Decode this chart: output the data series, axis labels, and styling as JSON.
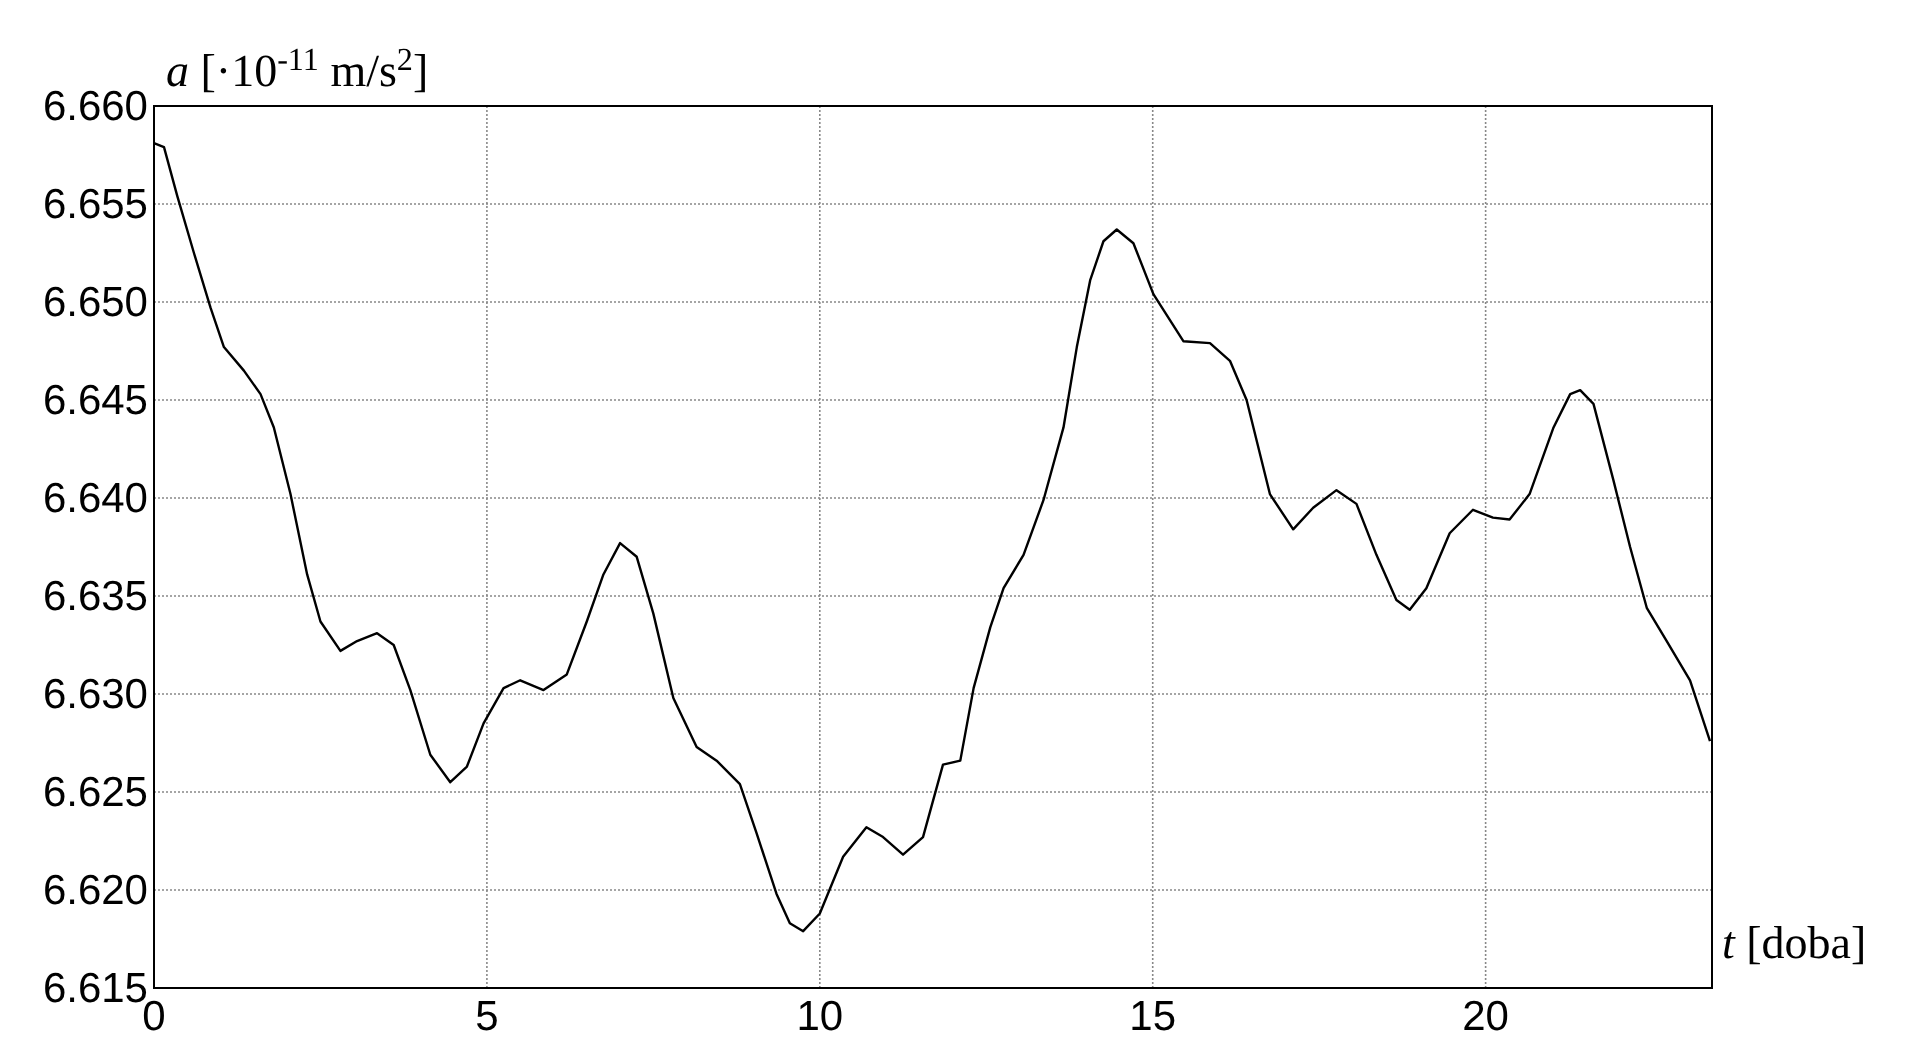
{
  "chart_data": {
    "type": "line",
    "ylabel": "a [·10$^{-11}$ m/s$^{2}$]",
    "xlabel": "t [doba]",
    "xlim": [
      0,
      23.4
    ],
    "ylim": [
      6.615,
      6.66
    ],
    "xticks": [
      0,
      5,
      10,
      15,
      20
    ],
    "yticks": [
      {
        "value": 6.615,
        "label": "6.615"
      },
      {
        "value": 6.62,
        "label": "6.620"
      },
      {
        "value": 6.625,
        "label": "6.625"
      },
      {
        "value": 6.63,
        "label": "6.630"
      },
      {
        "value": 6.635,
        "label": "6.635"
      },
      {
        "value": 6.64,
        "label": "6.640"
      },
      {
        "value": 6.645,
        "label": "6.645"
      },
      {
        "value": 6.65,
        "label": "6.650"
      },
      {
        "value": 6.655,
        "label": "6.655"
      },
      {
        "value": 6.66,
        "label": "6.660"
      }
    ],
    "grid": true,
    "line_style": "solid",
    "series": [
      {
        "color": "#000000",
        "x": [
          0,
          0.15,
          0.35,
          0.6,
          0.85,
          1.05,
          1.35,
          1.6,
          1.8,
          2.05,
          2.3,
          2.5,
          2.8,
          3.05,
          3.35,
          3.6,
          3.85,
          4.15,
          4.45,
          4.7,
          4.95,
          5.25,
          5.5,
          5.85,
          6.2,
          6.5,
          6.75,
          7.0,
          7.25,
          7.5,
          7.8,
          8.15,
          8.45,
          8.8,
          9.05,
          9.35,
          9.55,
          9.75,
          10.0,
          10.35,
          10.7,
          10.95,
          11.25,
          11.55,
          11.85,
          12.11,
          12.31,
          12.56,
          12.76,
          13.06,
          13.36,
          13.66,
          13.86,
          14.06,
          14.26,
          14.46,
          14.71,
          15.01,
          15.46,
          15.86,
          16.16,
          16.41,
          16.76,
          17.11,
          17.41,
          17.76,
          18.06,
          18.36,
          18.66,
          18.86,
          19.11,
          19.46,
          19.81,
          20.11,
          20.36,
          20.66,
          21.02,
          21.27,
          21.42,
          21.62,
          21.92,
          22.17,
          22.42,
          22.72,
          23.07,
          23.37
        ],
        "values": [
          6.6581,
          6.6579,
          6.6554,
          6.6525,
          6.6497,
          6.6477,
          6.6465,
          6.6453,
          6.6436,
          6.6402,
          6.6361,
          6.6337,
          6.6322,
          6.6327,
          6.6331,
          6.6325,
          6.6302,
          6.6269,
          6.6255,
          6.6263,
          6.6285,
          6.6303,
          6.6307,
          6.6302,
          6.631,
          6.6337,
          6.6361,
          6.6377,
          6.637,
          6.6341,
          6.6298,
          6.6273,
          6.6266,
          6.6254,
          6.6229,
          6.6198,
          6.6183,
          6.6179,
          6.6188,
          6.6217,
          6.6232,
          6.6227,
          6.6218,
          6.6227,
          6.6264,
          6.6266,
          6.6303,
          6.6334,
          6.6354,
          6.6371,
          6.6399,
          6.6436,
          6.6477,
          6.6511,
          6.6531,
          6.6537,
          6.653,
          6.6504,
          6.648,
          6.6479,
          6.647,
          6.645,
          6.6402,
          6.6384,
          6.6395,
          6.6404,
          6.6397,
          6.6371,
          6.6348,
          6.6343,
          6.6354,
          6.6382,
          6.6394,
          6.639,
          6.6389,
          6.6402,
          6.6436,
          6.6453,
          6.6455,
          6.6448,
          6.6409,
          6.6375,
          6.6344,
          6.6327,
          6.6307,
          6.6276
        ]
      }
    ]
  }
}
